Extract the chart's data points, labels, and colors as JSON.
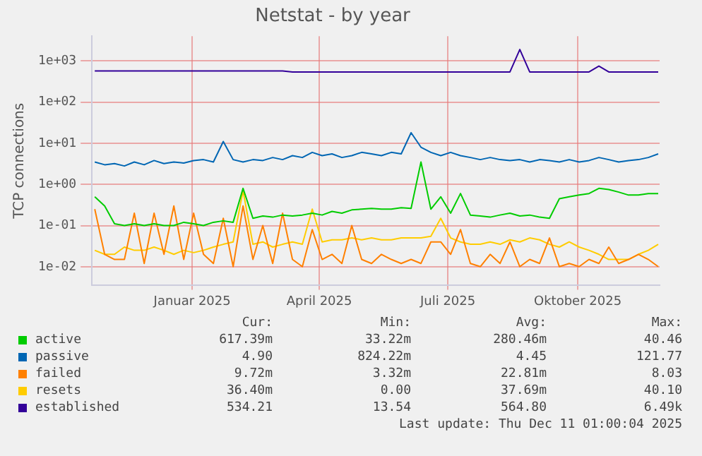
{
  "chart_data": {
    "type": "line",
    "title": "Netstat - by year",
    "ylabel": "TCP connections",
    "x": [
      "2024-10-24",
      "2024-10-31",
      "2024-11-07",
      "2024-11-14",
      "2024-11-21",
      "2024-11-28",
      "2024-12-05",
      "2024-12-12",
      "2024-12-19",
      "2024-12-26",
      "2025-01-02",
      "2025-01-09",
      "2025-01-16",
      "2025-01-23",
      "2025-01-30",
      "2025-02-06",
      "2025-02-13",
      "2025-02-20",
      "2025-02-27",
      "2025-03-06",
      "2025-03-13",
      "2025-03-20",
      "2025-03-27",
      "2025-04-03",
      "2025-04-10",
      "2025-04-17",
      "2025-04-24",
      "2025-05-01",
      "2025-05-08",
      "2025-05-15",
      "2025-05-22",
      "2025-05-29",
      "2025-06-05",
      "2025-06-12",
      "2025-06-19",
      "2025-06-26",
      "2025-07-03",
      "2025-07-10",
      "2025-07-17",
      "2025-07-24",
      "2025-07-31",
      "2025-08-07",
      "2025-08-14",
      "2025-08-21",
      "2025-08-28",
      "2025-09-04",
      "2025-09-11",
      "2025-09-18",
      "2025-09-25",
      "2025-10-02",
      "2025-10-09",
      "2025-10-16",
      "2025-10-23",
      "2025-10-30",
      "2025-11-06",
      "2025-11-13",
      "2025-11-20",
      "2025-11-27"
    ],
    "series": [
      {
        "name": "active",
        "color": "#00cc00",
        "values": [
          0.5,
          0.3,
          0.11,
          0.1,
          0.11,
          0.1,
          0.11,
          0.1,
          0.1,
          0.12,
          0.11,
          0.1,
          0.12,
          0.13,
          0.12,
          0.8,
          0.15,
          0.17,
          0.16,
          0.18,
          0.17,
          0.18,
          0.2,
          0.18,
          0.22,
          0.2,
          0.24,
          0.25,
          0.26,
          0.25,
          0.25,
          0.27,
          0.26,
          3.5,
          0.25,
          0.5,
          0.2,
          0.6,
          0.18,
          0.17,
          0.16,
          0.18,
          0.2,
          0.17,
          0.18,
          0.16,
          0.15,
          0.45,
          0.5,
          0.55,
          0.6,
          0.8,
          0.75,
          0.65,
          0.55,
          0.55,
          0.6,
          0.6
        ]
      },
      {
        "name": "passive",
        "color": "#0066b3",
        "values": [
          3.5,
          3,
          3.2,
          2.8,
          3.5,
          3,
          3.8,
          3.2,
          3.5,
          3.3,
          3.8,
          4,
          3.5,
          11,
          4,
          3.5,
          4,
          3.8,
          4.5,
          4,
          5,
          4.5,
          6,
          5,
          5.5,
          4.5,
          5,
          6,
          5.5,
          5,
          6,
          5.5,
          18,
          8,
          6,
          5,
          6,
          5,
          4.5,
          4,
          4.5,
          4,
          3.8,
          4,
          3.5,
          4,
          3.8,
          3.5,
          4,
          3.5,
          3.8,
          4.5,
          4,
          3.5,
          3.8,
          4,
          4.5,
          5.5
        ]
      },
      {
        "name": "failed",
        "color": "#ff8000",
        "values": [
          0.25,
          0.02,
          0.015,
          0.015,
          0.2,
          0.012,
          0.2,
          0.02,
          0.3,
          0.015,
          0.2,
          0.02,
          0.012,
          0.15,
          0.01,
          0.3,
          0.015,
          0.1,
          0.012,
          0.2,
          0.015,
          0.01,
          0.08,
          0.015,
          0.02,
          0.012,
          0.1,
          0.015,
          0.012,
          0.02,
          0.015,
          0.012,
          0.015,
          0.012,
          0.04,
          0.04,
          0.02,
          0.08,
          0.012,
          0.01,
          0.02,
          0.012,
          0.04,
          0.01,
          0.015,
          0.012,
          0.05,
          0.01,
          0.012,
          0.01,
          0.015,
          0.012,
          0.03,
          0.012,
          0.015,
          0.02,
          0.015,
          0.01
        ]
      },
      {
        "name": "resets",
        "color": "#ffcc00",
        "values": [
          0.025,
          0.02,
          0.02,
          0.03,
          0.025,
          0.025,
          0.03,
          0.025,
          0.02,
          0.025,
          0.022,
          0.025,
          0.03,
          0.035,
          0.04,
          0.7,
          0.035,
          0.04,
          0.03,
          0.035,
          0.04,
          0.035,
          0.25,
          0.04,
          0.045,
          0.045,
          0.05,
          0.045,
          0.05,
          0.045,
          0.045,
          0.05,
          0.05,
          0.05,
          0.055,
          0.15,
          0.05,
          0.04,
          0.035,
          0.035,
          0.04,
          0.035,
          0.045,
          0.04,
          0.05,
          0.045,
          0.035,
          0.03,
          0.04,
          0.03,
          0.025,
          0.02,
          0.015,
          0.015,
          0.015,
          0.02,
          0.025,
          0.035
        ]
      },
      {
        "name": "established",
        "color": "#330099",
        "values": [
          570,
          570,
          570,
          570,
          570,
          570,
          570,
          570,
          570,
          570,
          570,
          570,
          570,
          570,
          570,
          570,
          570,
          570,
          570,
          570,
          540,
          540,
          540,
          540,
          540,
          540,
          540,
          540,
          540,
          540,
          540,
          540,
          540,
          540,
          540,
          540,
          540,
          540,
          540,
          540,
          540,
          540,
          540,
          1900,
          540,
          540,
          540,
          540,
          540,
          540,
          540,
          750,
          540,
          540,
          540,
          540,
          540,
          540
        ]
      }
    ],
    "log": "y",
    "ylim": [
      0.0035,
      4000
    ],
    "yticks": [
      {
        "value": 0.01,
        "label": "1e-02"
      },
      {
        "value": 0.1,
        "label": "1e-01"
      },
      {
        "value": 1,
        "label": "1e+00"
      },
      {
        "value": 10,
        "label": "1e+01"
      },
      {
        "value": 100,
        "label": "1e+02"
      },
      {
        "value": 1000,
        "label": "1e+03"
      }
    ],
    "xlim": [
      "2024-10-22",
      "2025-11-28"
    ],
    "xticks": [
      {
        "value": "2025-01-01",
        "label": "Januar 2025"
      },
      {
        "value": "2025-04-01",
        "label": "April 2025"
      },
      {
        "value": "2025-07-01",
        "label": "Juli 2025"
      },
      {
        "value": "2025-10-01",
        "label": "Oktober 2025"
      }
    ],
    "grid": true,
    "legend": "bottom",
    "marker": "none",
    "line_style": "solid",
    "annotations": [
      "Cur:",
      "Min:",
      "Avg:",
      "Max:",
      "617.39m",
      "33.22m",
      "280.46m",
      "40.46",
      "4.90",
      "824.22m",
      "4.45",
      "121.77",
      "9.72m",
      "3.32m",
      "22.81m",
      "8.03",
      "36.40m",
      "0.00",
      "37.69m",
      "40.10",
      "534.21",
      "13.54",
      "564.80",
      "6.49k",
      "Last update: Thu Dec 11 01:00:04 2025"
    ]
  }
}
